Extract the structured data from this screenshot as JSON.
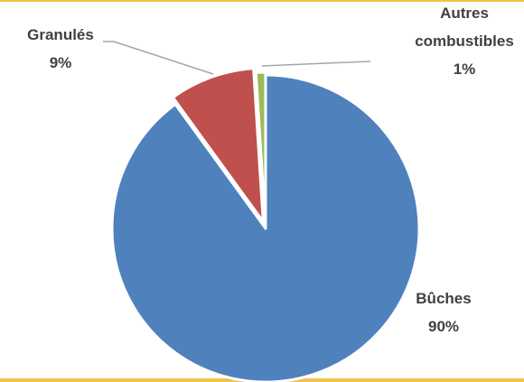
{
  "chart_data": {
    "type": "pie",
    "title": "",
    "slices": [
      {
        "label": "Bûches",
        "value": 90,
        "value_label": "90%",
        "color": "#4f81bd"
      },
      {
        "label": "Granulés",
        "value": 9,
        "value_label": "9%",
        "color": "#c0504d"
      },
      {
        "label": "Autres combustibles",
        "label_lines": [
          "Autres",
          "combustibles"
        ],
        "value": 1,
        "value_label": "1%",
        "color": "#9bbb59"
      }
    ],
    "legend": "none",
    "data_labels": "outside with leader lines"
  }
}
